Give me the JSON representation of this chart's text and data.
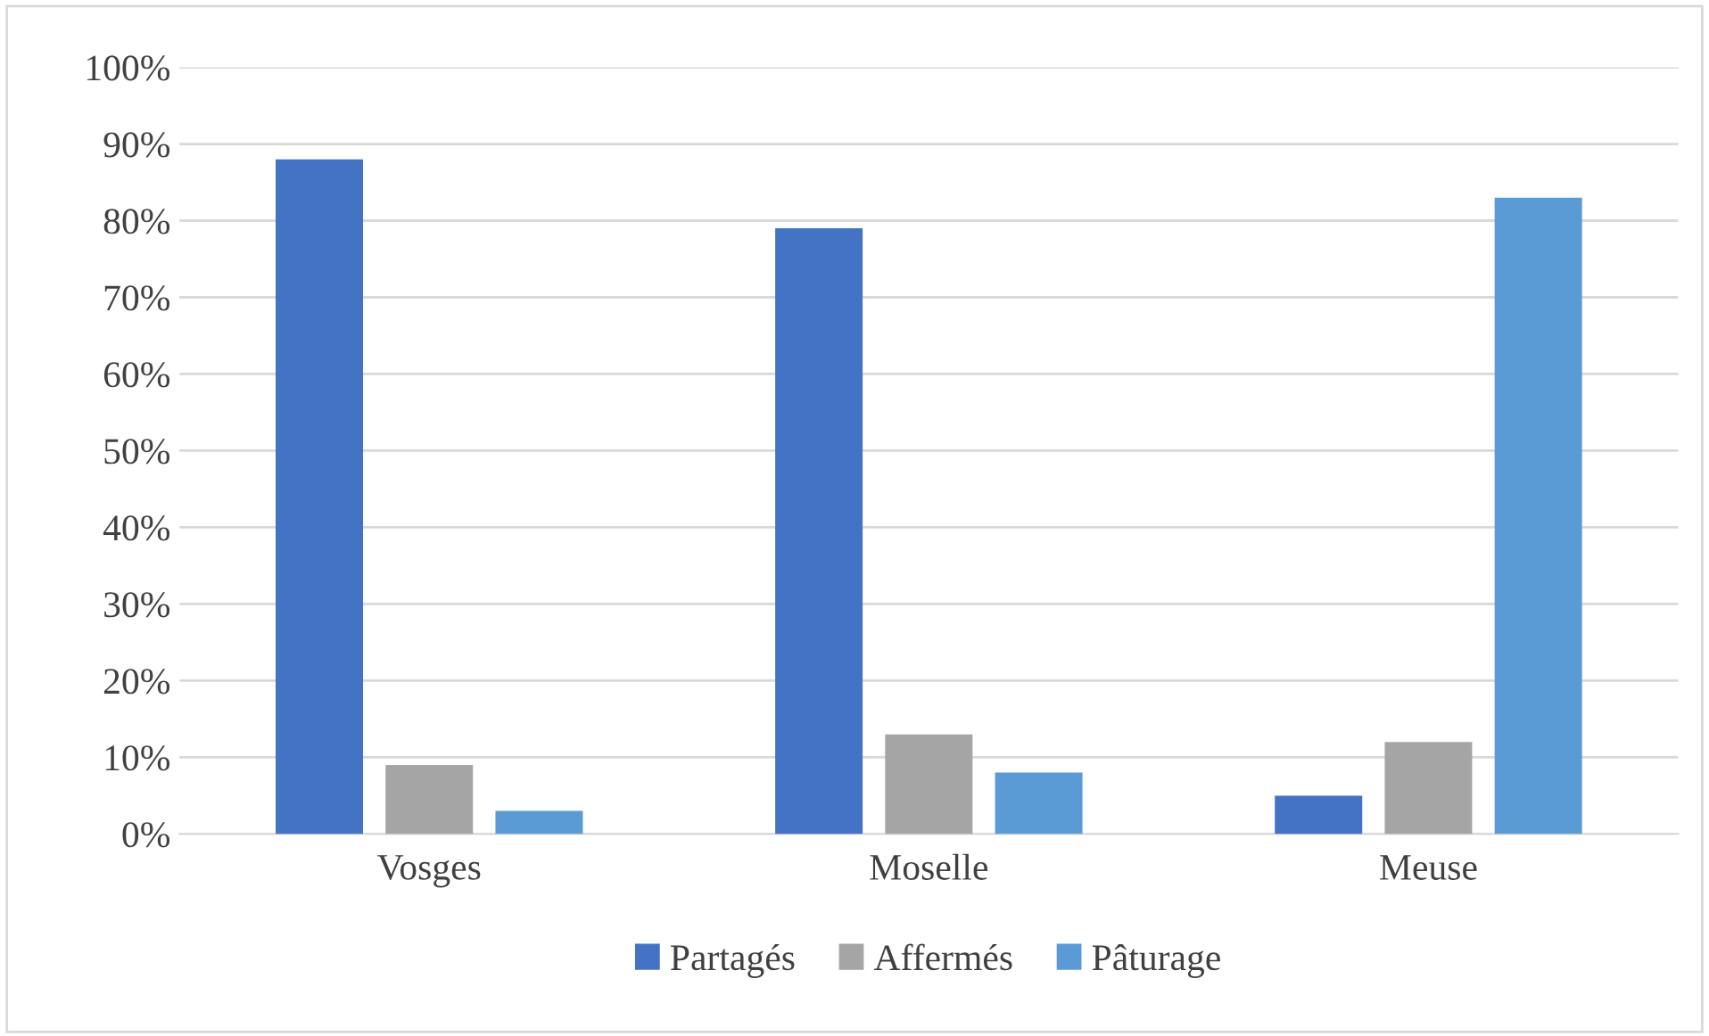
{
  "chart_data": {
    "type": "bar",
    "categories": [
      "Vosges",
      "Moselle",
      "Meuse"
    ],
    "series": [
      {
        "name": "Partagés",
        "color": "#4472c4",
        "values": [
          88,
          79,
          5
        ]
      },
      {
        "name": "Affermés",
        "color": "#a5a5a5",
        "values": [
          9,
          13,
          12
        ]
      },
      {
        "name": "Pâturage",
        "color": "#5b9bd5",
        "values": [
          3,
          8,
          83
        ]
      }
    ],
    "ylim": [
      0,
      100
    ],
    "yticks": [
      {
        "value": 0,
        "label": "0%"
      },
      {
        "value": 10,
        "label": "10%"
      },
      {
        "value": 20,
        "label": "20%"
      },
      {
        "value": 30,
        "label": "30%"
      },
      {
        "value": 40,
        "label": "40%"
      },
      {
        "value": 50,
        "label": "50%"
      },
      {
        "value": 60,
        "label": "60%"
      },
      {
        "value": 70,
        "label": "70%"
      },
      {
        "value": 80,
        "label": "80%"
      },
      {
        "value": 90,
        "label": "90%"
      },
      {
        "value": 100,
        "label": "100%"
      }
    ],
    "grid": "y",
    "legend": "bottom"
  }
}
